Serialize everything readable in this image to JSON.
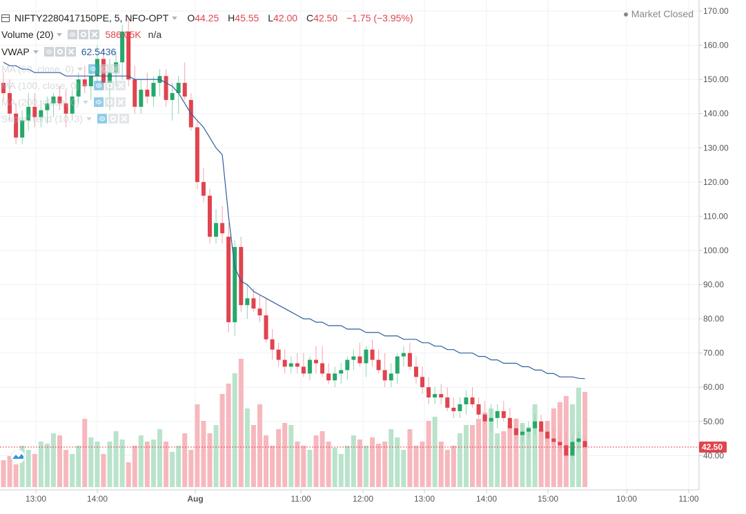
{
  "header": {
    "symbol": "NIFTY2280417150PE, 5, NFO-OPT",
    "open_label": "O",
    "open": "44.25",
    "high_label": "H",
    "high": "45.55",
    "low_label": "L",
    "low": "42.00",
    "close_label": "C",
    "close": "42.50",
    "change": "−1.75 (−3.95%)",
    "market_status": "Market Closed"
  },
  "indicators": [
    {
      "name": "Volume (20)",
      "value": "586.05K",
      "value2": "n/a",
      "value_color": "#e0444f"
    },
    {
      "name": "VWAP",
      "value": "62.5436",
      "value_color": "#2c5c9c"
    },
    {
      "name": "MA (50, close, 0)",
      "value": ""
    },
    {
      "name": "MA (100, close, 0)",
      "value": ""
    },
    {
      "name": "MA (200, close, 0)",
      "value": ""
    },
    {
      "name": "SuperTrend (10, 3)",
      "value": ""
    }
  ],
  "colors": {
    "up": "#26a86a",
    "down": "#e0444f",
    "up_vol": "#b9e3cb",
    "down_vol": "#f6b8bd",
    "vwap": "#2c5c9c",
    "grid": "#eef1f3"
  },
  "chart_data": {
    "type": "candlestick",
    "ylim": [
      30,
      172
    ],
    "y_ticks": [
      40,
      50,
      60,
      70,
      80,
      90,
      100,
      110,
      120,
      130,
      140,
      150,
      160,
      170
    ],
    "x_tick_labels": [
      "13:00",
      "14:00",
      "Aug",
      "11:00",
      "12:00",
      "13:00",
      "14:00",
      "15:00",
      "10:00",
      "11:00"
    ],
    "last_price": "42.50",
    "candles": [
      [
        149,
        152,
        144,
        146
      ],
      [
        146,
        150,
        138,
        140
      ],
      [
        140,
        143,
        131,
        133
      ],
      [
        133,
        141,
        131,
        138
      ],
      [
        138,
        146,
        135,
        142
      ],
      [
        142,
        146,
        136,
        139
      ],
      [
        139,
        144,
        136,
        141
      ],
      [
        141,
        145,
        137,
        143
      ],
      [
        143,
        146,
        139,
        145
      ],
      [
        145,
        148,
        141,
        143
      ],
      [
        143,
        147,
        136,
        140
      ],
      [
        140,
        147,
        138,
        145
      ],
      [
        145,
        152,
        143,
        150
      ],
      [
        150,
        154,
        146,
        148
      ],
      [
        148,
        153,
        144,
        151
      ],
      [
        151,
        160,
        149,
        156
      ],
      [
        156,
        159,
        147,
        149
      ],
      [
        149,
        156,
        141,
        152
      ],
      [
        152,
        158,
        148,
        155
      ],
      [
        155,
        166,
        150,
        164
      ],
      [
        164,
        168,
        148,
        150
      ],
      [
        150,
        154,
        140,
        142
      ],
      [
        142,
        150,
        140,
        147
      ],
      [
        147,
        152,
        143,
        145
      ],
      [
        145,
        151,
        142,
        149
      ],
      [
        149,
        153,
        145,
        151
      ],
      [
        151,
        153,
        142,
        144
      ],
      [
        144,
        149,
        138,
        146
      ],
      [
        146,
        151,
        140,
        149
      ],
      [
        149,
        155,
        144,
        145
      ],
      [
        144,
        146,
        135,
        136
      ],
      [
        136,
        138,
        118,
        120
      ],
      [
        120,
        124,
        114,
        116
      ],
      [
        116,
        118,
        102,
        104
      ],
      [
        104,
        112,
        102,
        108
      ],
      [
        108,
        113,
        102,
        105
      ],
      [
        104,
        108,
        76,
        79
      ],
      [
        79,
        103,
        75,
        101
      ],
      [
        101,
        104,
        82,
        84
      ],
      [
        84,
        90,
        80,
        86
      ],
      [
        86,
        89,
        82,
        83
      ],
      [
        83,
        87,
        79,
        81
      ],
      [
        81,
        86,
        73,
        74
      ],
      [
        74,
        77,
        68,
        71
      ],
      [
        71,
        73,
        66,
        68
      ],
      [
        68,
        71,
        64,
        66
      ],
      [
        66,
        69,
        64,
        67
      ],
      [
        67,
        70,
        64,
        66
      ],
      [
        66,
        70,
        63,
        64
      ],
      [
        64,
        69,
        62,
        68
      ],
      [
        68,
        72,
        64,
        67
      ],
      [
        67,
        72,
        63,
        64
      ],
      [
        64,
        67,
        61,
        62
      ],
      [
        62,
        66,
        60,
        64
      ],
      [
        64,
        67,
        61,
        65
      ],
      [
        65,
        69,
        62,
        68
      ],
      [
        68,
        71,
        65,
        69
      ],
      [
        69,
        73,
        66,
        67
      ],
      [
        67,
        72,
        63,
        71
      ],
      [
        71,
        74,
        66,
        68
      ],
      [
        68,
        71,
        64,
        65
      ],
      [
        65,
        70,
        60,
        62
      ],
      [
        62,
        67,
        60,
        64
      ],
      [
        64,
        70,
        61,
        69
      ],
      [
        69,
        72,
        66,
        70
      ],
      [
        70,
        73,
        65,
        66
      ],
      [
        66,
        69,
        61,
        63
      ],
      [
        63,
        66,
        58,
        60
      ],
      [
        60,
        63,
        55,
        57
      ],
      [
        57,
        60,
        55,
        58
      ],
      [
        58,
        61,
        55,
        57
      ],
      [
        57,
        60,
        53,
        54
      ],
      [
        54,
        57,
        51,
        53
      ],
      [
        53,
        57,
        51,
        55
      ],
      [
        55,
        59,
        52,
        57
      ],
      [
        57,
        60,
        54,
        55
      ],
      [
        55,
        57,
        51,
        52
      ],
      [
        52,
        56,
        49,
        50
      ],
      [
        50,
        55,
        47,
        51
      ],
      [
        51,
        55,
        48,
        53
      ],
      [
        53,
        56,
        50,
        51
      ],
      [
        51,
        54,
        47,
        48
      ],
      [
        48,
        51,
        45,
        46
      ],
      [
        46,
        49,
        44,
        47
      ],
      [
        47,
        50,
        45,
        48
      ],
      [
        48,
        52,
        46,
        50
      ],
      [
        50,
        52,
        46,
        47
      ],
      [
        47,
        50,
        44,
        45
      ],
      [
        45,
        48,
        43,
        44
      ],
      [
        44,
        46,
        41,
        43
      ],
      [
        43,
        47,
        39,
        40
      ],
      [
        40,
        46,
        39,
        44
      ],
      [
        44,
        47,
        42,
        45
      ],
      [
        44.25,
        45.55,
        42.0,
        42.5
      ]
    ],
    "volume": [
      13,
      15,
      11,
      20,
      18,
      16,
      22,
      21,
      26,
      25,
      18,
      16,
      20,
      33,
      24,
      22,
      16,
      22,
      27,
      23,
      12,
      20,
      25,
      22,
      23,
      28,
      22,
      17,
      20,
      26,
      18,
      40,
      32,
      26,
      30,
      45,
      50,
      55,
      62,
      38,
      30,
      40,
      25,
      20,
      28,
      31,
      30,
      22,
      20,
      18,
      25,
      27,
      22,
      19,
      16,
      20,
      25,
      23,
      20,
      24,
      21,
      22,
      28,
      24,
      18,
      28,
      20,
      22,
      32,
      34,
      22,
      18,
      20,
      26,
      30,
      30,
      33,
      36,
      38,
      26,
      27,
      30,
      33,
      31,
      29,
      40,
      28,
      32,
      38,
      41,
      44,
      40,
      48,
      46
    ],
    "vwap": [
      155,
      154,
      154,
      153,
      153,
      152,
      152,
      152,
      152,
      152,
      151,
      151,
      151,
      151,
      151,
      151,
      151,
      151,
      151,
      151,
      151,
      150,
      150,
      150,
      150,
      150,
      149,
      148,
      146,
      143,
      140,
      138,
      136,
      133,
      130,
      128,
      110,
      95,
      91,
      90,
      88,
      87,
      86,
      85,
      84,
      83,
      82,
      81,
      80,
      80,
      79,
      79,
      78,
      78,
      78,
      77,
      77,
      77,
      76,
      76,
      76,
      75,
      75,
      75,
      74,
      74,
      74,
      73,
      73,
      72,
      72,
      71,
      71,
      70,
      70,
      70,
      69,
      69,
      68,
      68,
      67,
      67,
      67,
      66,
      66,
      65,
      65,
      64,
      64,
      63,
      63,
      63,
      62.6,
      62.5
    ]
  }
}
